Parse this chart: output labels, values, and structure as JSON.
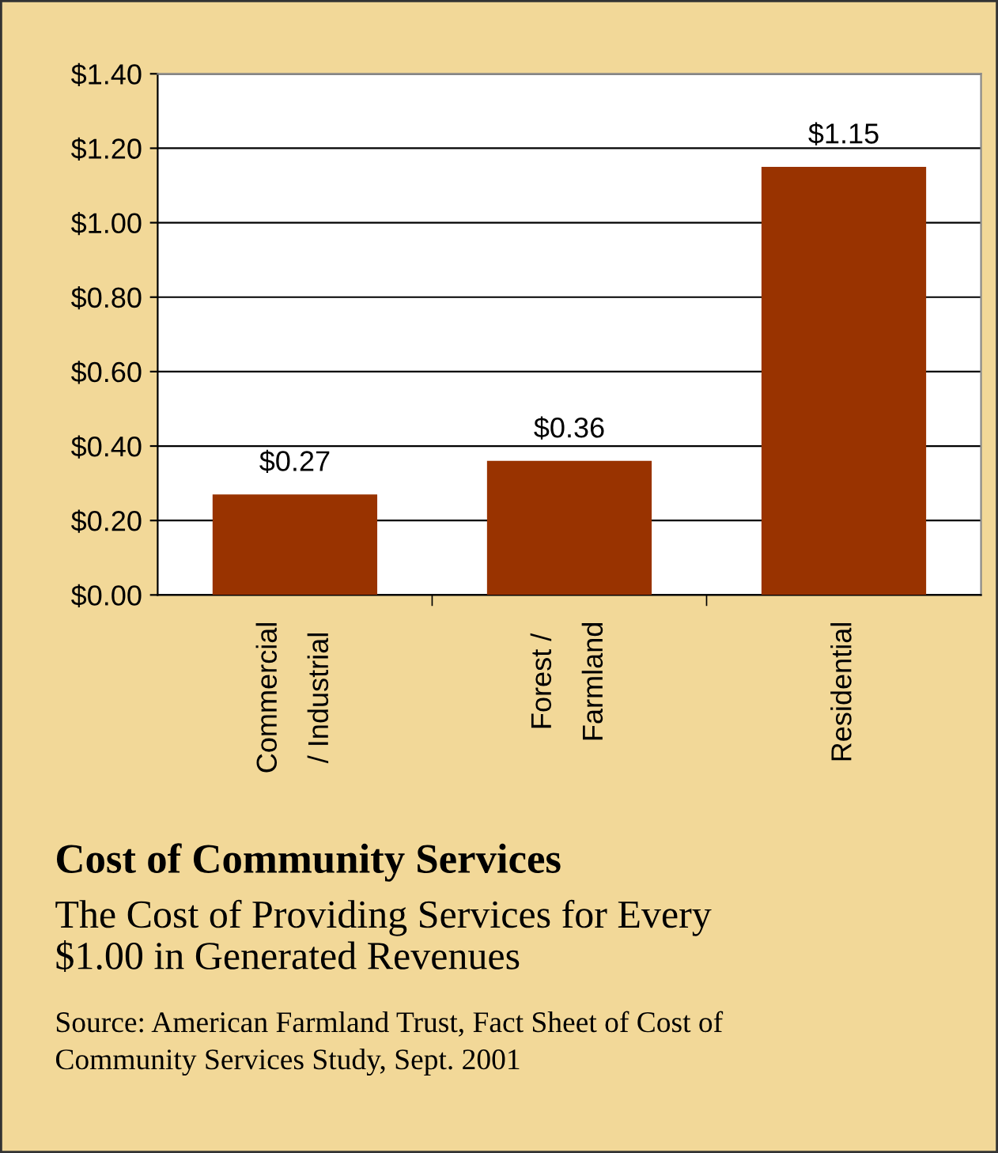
{
  "chart_data": {
    "type": "bar",
    "title": "Cost of Community Services",
    "subtitle": "The Cost of Providing Services for Every\n$1.00 in Generated Revenues",
    "categories": [
      "Commercial\n/ Industrial",
      "Forest /\nFarmland",
      "Residential"
    ],
    "values": [
      0.27,
      0.36,
      1.15
    ],
    "value_labels": [
      "$0.27",
      "$0.36",
      "$1.15"
    ],
    "color": "#993300",
    "ylim": [
      0,
      1.4
    ],
    "yticks": [
      {
        "value": 0,
        "label": "$0.00"
      },
      {
        "value": 0.2,
        "label": "$0.20"
      },
      {
        "value": 0.4,
        "label": "$0.40"
      },
      {
        "value": 0.6,
        "label": "$0.60"
      },
      {
        "value": 0.8,
        "label": "$0.80"
      },
      {
        "value": 1.0,
        "label": "$1.00"
      },
      {
        "value": 1.2,
        "label": "$1.20"
      },
      {
        "value": 1.4,
        "label": "$1.40"
      }
    ],
    "grid": "y",
    "annotations": [
      "Source: American Farmland Trust, Fact Sheet of Cost of\nCommunity Services Study, Sept. 2001"
    ]
  }
}
